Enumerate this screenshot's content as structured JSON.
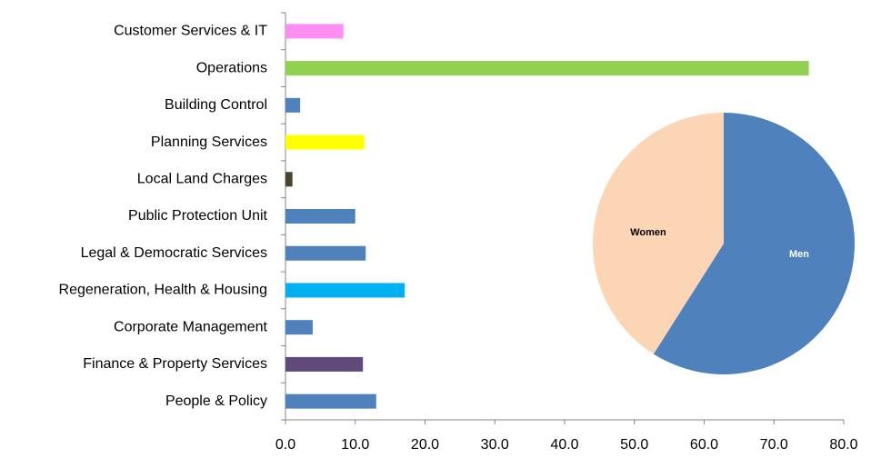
{
  "chart_data": [
    {
      "type": "bar",
      "orientation": "horizontal",
      "categories": [
        "Customer Services & IT",
        "Operations",
        "Building Control",
        "Planning Services",
        "Local Land Charges",
        "Public Protection Unit",
        "Legal & Democratic Services",
        "Regeneration, Health & Housing",
        "Corporate Management",
        "Finance & Property Services",
        "People & Policy"
      ],
      "values": [
        8.3,
        75,
        2.1,
        11.3,
        1.0,
        10.0,
        11.5,
        17.1,
        3.9,
        11.1,
        13.0
      ],
      "colors": [
        "#ff8ef4",
        "#92d050",
        "#4f81bd",
        "#ffff00",
        "#4a452a",
        "#4f81bd",
        "#4f81bd",
        "#00b0f0",
        "#4f81bd",
        "#604a7b",
        "#4f81bd"
      ],
      "xlim": [
        0,
        80
      ],
      "xticks": [
        {
          "value": 0,
          "label": "0.0"
        },
        {
          "value": 10,
          "label": "10.0"
        },
        {
          "value": 20,
          "label": "20.0"
        },
        {
          "value": 30,
          "label": "30.0"
        },
        {
          "value": 40,
          "label": "40.0"
        },
        {
          "value": 50,
          "label": "50.0"
        },
        {
          "value": 60,
          "label": "60.0"
        },
        {
          "value": 70,
          "label": "70.0"
        },
        {
          "value": 80,
          "label": "80.0"
        }
      ],
      "grid": false
    },
    {
      "type": "pie",
      "categories": [
        "Men",
        "Women"
      ],
      "values": [
        59,
        41
      ],
      "colors": [
        "#4f81bd",
        "#fcd5b5"
      ]
    }
  ]
}
